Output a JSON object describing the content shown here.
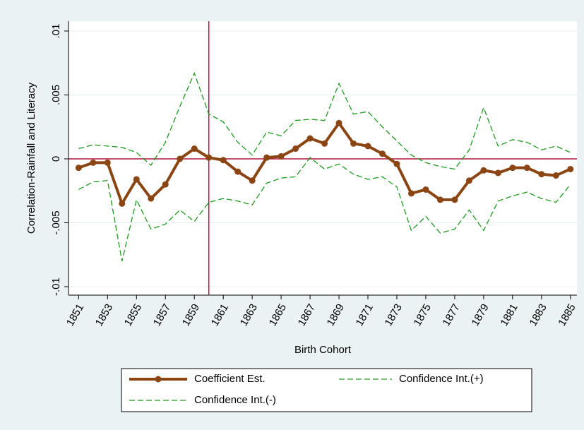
{
  "chart_data": {
    "type": "line",
    "x": [
      1851,
      1852,
      1853,
      1854,
      1855,
      1856,
      1857,
      1858,
      1859,
      1860,
      1861,
      1862,
      1863,
      1864,
      1865,
      1866,
      1867,
      1868,
      1869,
      1870,
      1871,
      1872,
      1873,
      1874,
      1875,
      1876,
      1877,
      1878,
      1879,
      1880,
      1881,
      1882,
      1883,
      1884,
      1885
    ],
    "series": [
      {
        "name": "Coefficient Est.",
        "color": "#8b4513",
        "line_style": "solid",
        "marker": "circle",
        "values": [
          -0.0007,
          -0.0003,
          -0.0003,
          -0.0035,
          -0.0016,
          -0.0031,
          -0.002,
          0,
          0.0008,
          0.0001,
          -0.0001,
          -0.001,
          -0.0017,
          0.0001,
          0.0002,
          0.0008,
          0.0016,
          0.0012,
          0.0028,
          0.0012,
          0.001,
          0.0004,
          -0.0004,
          -0.0027,
          -0.0024,
          -0.0032,
          -0.0032,
          -0.0017,
          -0.0009,
          -0.0011,
          -0.0007,
          -0.0007,
          -0.0012,
          -0.0013,
          -0.0008
        ]
      },
      {
        "name": "Confidence Int.(+)",
        "color": "#1e9a1e",
        "line_style": "dashed",
        "values": [
          0.0008,
          0.0011,
          0.001,
          0.0009,
          0.0005,
          -0.0005,
          0.0013,
          0.0041,
          0.0067,
          0.0035,
          0.0029,
          0.0013,
          0.0003,
          0.0021,
          0.0018,
          0.003,
          0.0031,
          0.003,
          0.0059,
          0.0035,
          0.0037,
          0.0025,
          0.0014,
          0.0003,
          -0.0003,
          -0.0006,
          -0.0008,
          0.0007,
          0.004,
          0.001,
          0.0015,
          0.0013,
          0.0007,
          0.001,
          0.0005
        ]
      },
      {
        "name": "Confidence Int.(-)",
        "color": "#1e9a1e",
        "line_style": "dashed",
        "values": [
          -0.0024,
          -0.0018,
          -0.0017,
          -0.008,
          -0.0032,
          -0.0055,
          -0.0051,
          -0.004,
          -0.0049,
          -0.0034,
          -0.0031,
          -0.0033,
          -0.0036,
          -0.0019,
          -0.0015,
          -0.0014,
          0.0001,
          -0.0008,
          -0.0004,
          -0.0012,
          -0.0016,
          -0.0014,
          -0.0022,
          -0.0056,
          -0.0045,
          -0.0058,
          -0.0055,
          -0.004,
          -0.0056,
          -0.0033,
          -0.0029,
          -0.0026,
          -0.0031,
          -0.0034,
          -0.002
        ]
      }
    ],
    "xlabel": "Birth Cohort",
    "ylabel": "Correlation-Rainfall and Literacy",
    "xlim": [
      1850.3,
      1885.45
    ],
    "xticks": [
      1851,
      1853,
      1855,
      1857,
      1859,
      1861,
      1863,
      1865,
      1867,
      1869,
      1871,
      1873,
      1875,
      1877,
      1879,
      1881,
      1883,
      1885
    ],
    "ylim": [
      -0.01066,
      0.01077
    ],
    "yticks": [
      {
        "value": -0.01,
        "label": "-.01"
      },
      {
        "value": -0.005,
        "label": "-.005"
      },
      0,
      {
        "value": 0.005,
        "label": ".005"
      },
      {
        "value": 0.01,
        "label": ".01"
      }
    ],
    "grid": true,
    "reference_lines": {
      "x": 1860,
      "y": 0,
      "color": "#b0173e"
    },
    "legend_position": "bottom"
  }
}
